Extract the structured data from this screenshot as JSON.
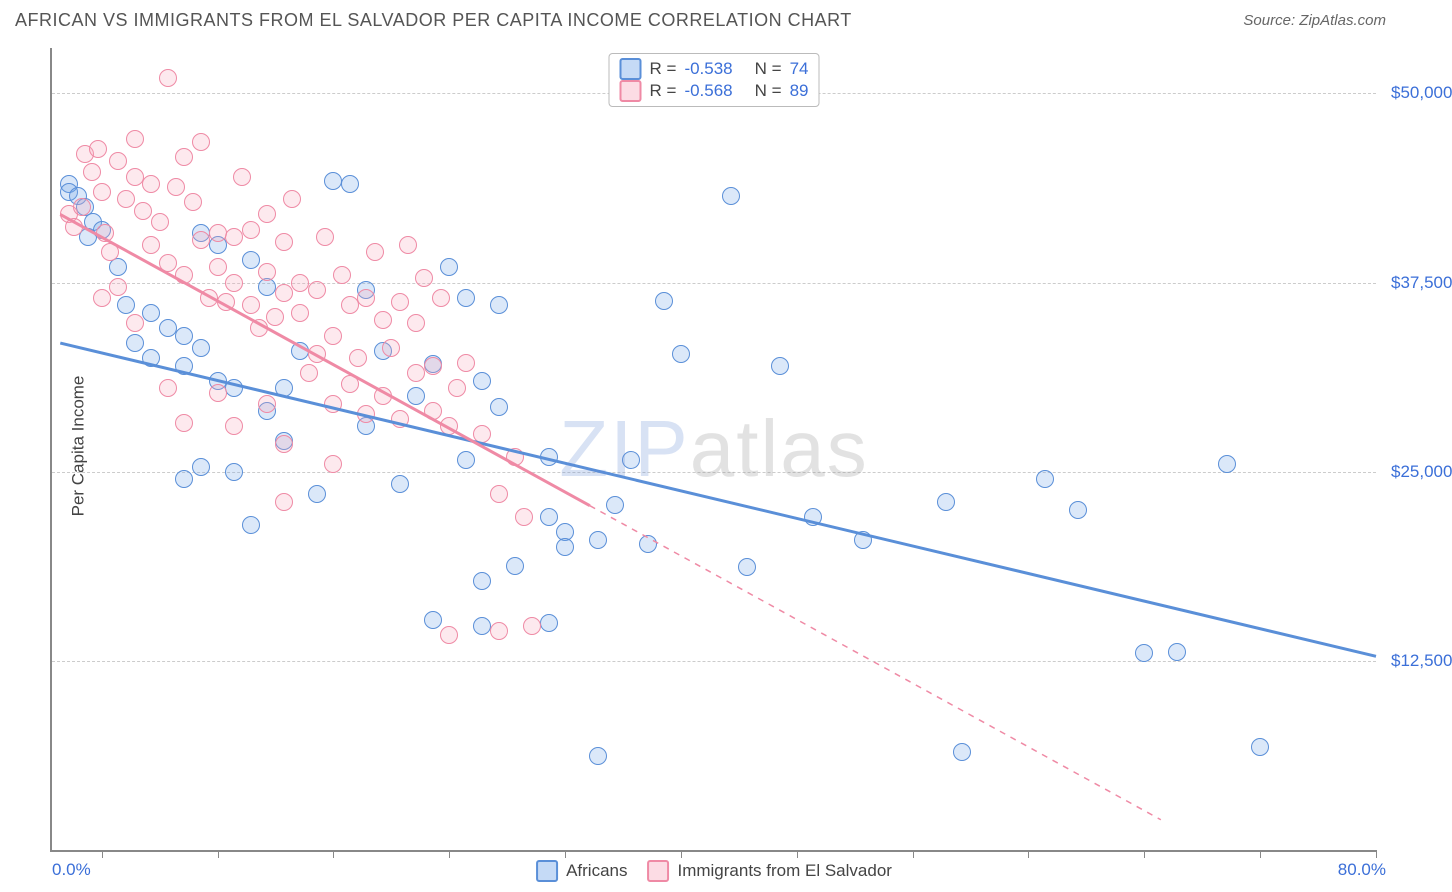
{
  "header": {
    "title": "AFRICAN VS IMMIGRANTS FROM EL SALVADOR PER CAPITA INCOME CORRELATION CHART",
    "source_prefix": "Source: ",
    "source": "ZipAtlas.com"
  },
  "watermark": {
    "part1": "ZIP",
    "part2": "atlas"
  },
  "chart": {
    "type": "scatter",
    "ylabel": "Per Capita Income",
    "xlim": [
      0,
      80
    ],
    "ylim": [
      0,
      53000
    ],
    "xlabel_min": "0.0%",
    "xlabel_max": "80.0%",
    "xtick_positions": [
      3,
      10,
      17,
      24,
      31,
      38,
      45,
      52,
      59,
      66,
      73,
      80
    ],
    "yticks": [
      {
        "v": 12500,
        "label": "$12,500"
      },
      {
        "v": 25000,
        "label": "$25,000"
      },
      {
        "v": 37500,
        "label": "$37,500"
      },
      {
        "v": 50000,
        "label": "$50,000"
      }
    ],
    "grid_color": "#cccccc",
    "background": "#ffffff",
    "text_color": "#444444",
    "tick_label_color": "#3b6fd8",
    "marker_radius": 9,
    "marker_stroke_width": 1.5,
    "marker_fill_opacity": 0.25,
    "series": [
      {
        "id": "africans",
        "label": "Africans",
        "color": "#6fa3e8",
        "stroke": "#5a8fd8",
        "r_value": "-0.538",
        "n_value": "74",
        "regline": {
          "x1": 0.5,
          "y1": 33500,
          "x2": 80,
          "y2": 12800,
          "width": 3,
          "dash_from_x": 80
        },
        "points": [
          [
            1,
            44000
          ],
          [
            1,
            43500
          ],
          [
            1.6,
            43200
          ],
          [
            2,
            42500
          ],
          [
            2.5,
            41500
          ],
          [
            2.2,
            40500
          ],
          [
            4,
            38500
          ],
          [
            3,
            41000
          ],
          [
            4.5,
            36000
          ],
          [
            5,
            33500
          ],
          [
            6,
            35500
          ],
          [
            7,
            34500
          ],
          [
            6,
            32500
          ],
          [
            8,
            34000
          ],
          [
            9,
            33200
          ],
          [
            8,
            32000
          ],
          [
            10,
            31000
          ],
          [
            10,
            40000
          ],
          [
            12,
            39000
          ],
          [
            11,
            30500
          ],
          [
            13,
            37200
          ],
          [
            13,
            29000
          ],
          [
            14,
            30500
          ],
          [
            15,
            33000
          ],
          [
            18,
            44000
          ],
          [
            25,
            36500
          ],
          [
            27,
            36000
          ],
          [
            24,
            38500
          ],
          [
            22,
            30000
          ],
          [
            23,
            32100
          ],
          [
            21,
            24200
          ],
          [
            19,
            28000
          ],
          [
            20,
            33000
          ],
          [
            25,
            25800
          ],
          [
            26,
            31000
          ],
          [
            27,
            29300
          ],
          [
            30,
            22000
          ],
          [
            30,
            26000
          ],
          [
            31,
            21000
          ],
          [
            30,
            15000
          ],
          [
            28,
            18800
          ],
          [
            26,
            17800
          ],
          [
            26,
            14800
          ],
          [
            33,
            20500
          ],
          [
            34,
            22800
          ],
          [
            35,
            25800
          ],
          [
            36,
            20200
          ],
          [
            37,
            36300
          ],
          [
            38,
            32800
          ],
          [
            41,
            43200
          ],
          [
            42,
            18700
          ],
          [
            44,
            32000
          ],
          [
            46,
            22000
          ],
          [
            49,
            20500
          ],
          [
            54,
            23000
          ],
          [
            60,
            24500
          ],
          [
            62,
            22500
          ],
          [
            66,
            13000
          ],
          [
            68,
            13100
          ],
          [
            71,
            25500
          ],
          [
            73,
            6800
          ],
          [
            33,
            6200
          ],
          [
            17,
            44200
          ],
          [
            19,
            37000
          ],
          [
            14,
            27000
          ],
          [
            8,
            24500
          ],
          [
            9,
            25300
          ],
          [
            11,
            25000
          ],
          [
            16,
            23500
          ],
          [
            12,
            21500
          ],
          [
            9,
            40800
          ],
          [
            23,
            15200
          ],
          [
            55,
            6500
          ],
          [
            31,
            20000
          ]
        ]
      },
      {
        "id": "el_salvador",
        "label": "Immigrants from El Salvador",
        "color": "#f7a8bc",
        "stroke": "#ef8aa5",
        "r_value": "-0.568",
        "n_value": "89",
        "regline": {
          "x1": 0.5,
          "y1": 42000,
          "x2": 67,
          "y2": 2000,
          "width": 3,
          "dash_from_x": 32.5
        },
        "points": [
          [
            1,
            42000
          ],
          [
            1.3,
            41200
          ],
          [
            1.8,
            42500
          ],
          [
            2,
            46000
          ],
          [
            2.4,
            44800
          ],
          [
            2.8,
            46300
          ],
          [
            3,
            43500
          ],
          [
            3.2,
            40800
          ],
          [
            3.5,
            39500
          ],
          [
            4,
            45500
          ],
          [
            4.5,
            43000
          ],
          [
            5,
            44500
          ],
          [
            5,
            47000
          ],
          [
            5.5,
            42200
          ],
          [
            6,
            40000
          ],
          [
            6,
            44000
          ],
          [
            6.5,
            41500
          ],
          [
            7,
            38800
          ],
          [
            7,
            51000
          ],
          [
            7.5,
            43800
          ],
          [
            8,
            45800
          ],
          [
            8,
            38000
          ],
          [
            8.5,
            42800
          ],
          [
            9,
            40300
          ],
          [
            9,
            46800
          ],
          [
            9.5,
            36500
          ],
          [
            10,
            40800
          ],
          [
            10,
            38500
          ],
          [
            10.5,
            36200
          ],
          [
            11,
            40500
          ],
          [
            11,
            37500
          ],
          [
            11.5,
            44500
          ],
          [
            12,
            36000
          ],
          [
            12,
            41000
          ],
          [
            12.5,
            34500
          ],
          [
            13,
            38200
          ],
          [
            13,
            42000
          ],
          [
            13.5,
            35200
          ],
          [
            14,
            40200
          ],
          [
            14,
            36800
          ],
          [
            14.5,
            43000
          ],
          [
            15,
            37500
          ],
          [
            15,
            35500
          ],
          [
            15.5,
            31500
          ],
          [
            16,
            37000
          ],
          [
            16,
            32800
          ],
          [
            16.5,
            40500
          ],
          [
            17,
            34000
          ],
          [
            17,
            29500
          ],
          [
            17.5,
            38000
          ],
          [
            18,
            36000
          ],
          [
            18,
            30800
          ],
          [
            18.5,
            32500
          ],
          [
            19,
            36500
          ],
          [
            19,
            28800
          ],
          [
            19.5,
            39500
          ],
          [
            20,
            35000
          ],
          [
            20,
            30000
          ],
          [
            20.5,
            33200
          ],
          [
            21,
            36200
          ],
          [
            21,
            28500
          ],
          [
            21.5,
            40000
          ],
          [
            22,
            34800
          ],
          [
            22,
            31500
          ],
          [
            22.5,
            37800
          ],
          [
            23,
            32000
          ],
          [
            23,
            29000
          ],
          [
            23.5,
            36500
          ],
          [
            24,
            28000
          ],
          [
            24.5,
            30500
          ],
          [
            25,
            32200
          ],
          [
            26,
            27500
          ],
          [
            27,
            23500
          ],
          [
            28,
            26000
          ],
          [
            28.5,
            22000
          ],
          [
            29,
            14800
          ],
          [
            27,
            14500
          ],
          [
            24,
            14200
          ],
          [
            17,
            25500
          ],
          [
            14,
            26800
          ],
          [
            13,
            29500
          ],
          [
            11,
            28000
          ],
          [
            10,
            30200
          ],
          [
            8,
            28200
          ],
          [
            7,
            30500
          ],
          [
            4,
            37200
          ],
          [
            5,
            34800
          ],
          [
            3,
            36500
          ],
          [
            14,
            23000
          ]
        ]
      }
    ],
    "legend_r_label": "R =",
    "legend_n_label": "N ="
  }
}
